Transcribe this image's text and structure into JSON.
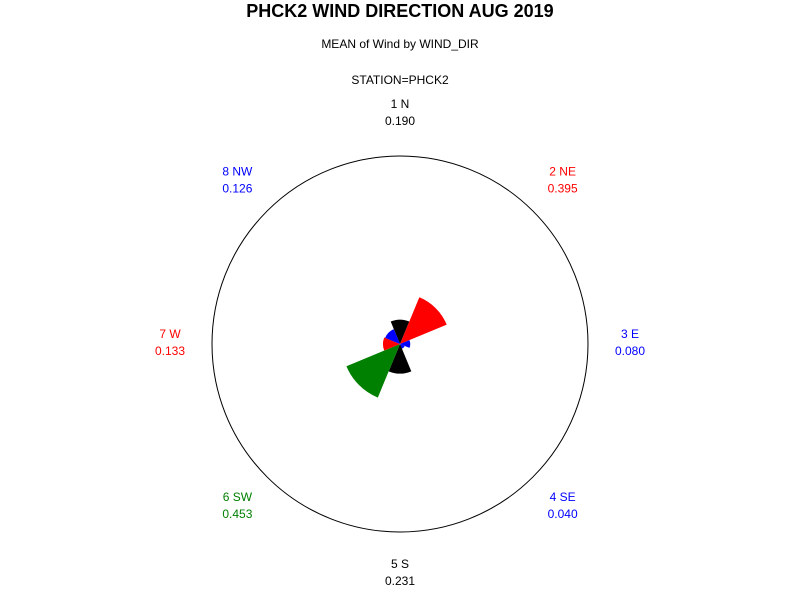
{
  "chart_data": {
    "type": "star",
    "title": "PHCK2 WIND DIRECTION AUG 2019",
    "subtitle": "MEAN of Wind by WIND_DIR",
    "by_label": "STATION=PHCK2",
    "categories": [
      "1 N",
      "2 NE",
      "3 E",
      "4 SE",
      "5 S",
      "6 SW",
      "7 W",
      "8 NW"
    ],
    "values": [
      0.19,
      0.395,
      0.08,
      0.04,
      0.231,
      0.453,
      0.133,
      0.126
    ],
    "value_labels": [
      "0.190",
      "0.395",
      "0.080",
      "0.040",
      "0.231",
      "0.453",
      "0.133",
      "0.126"
    ],
    "colors": [
      "#000000",
      "#ff0000",
      "#0000ff",
      "#0000ff",
      "#000000",
      "#008000",
      "#ff0000",
      "#0000ff"
    ]
  }
}
